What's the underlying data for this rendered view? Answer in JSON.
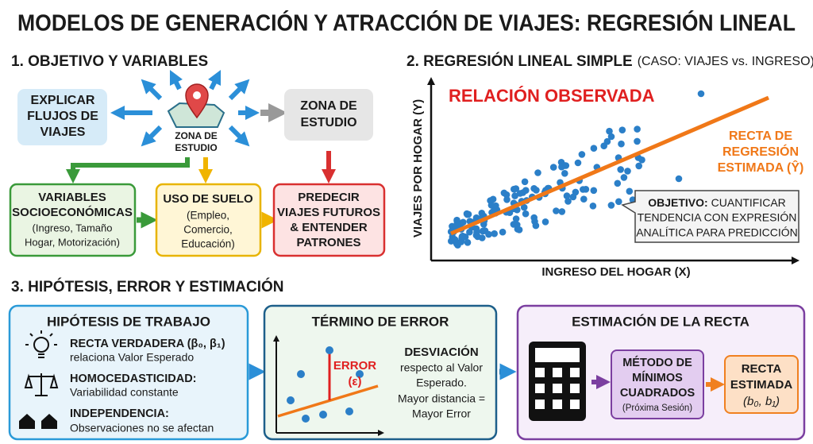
{
  "title": "MODELOS DE GENERACIÓN Y ATRACCIÓN DE VIAJES: REGRESIÓN LINEAL",
  "section1": {
    "heading": "1. OBJETIVO Y VARIABLES",
    "explain": [
      "EXPLICAR",
      "FLUJOS DE",
      "VIAJES"
    ],
    "center": [
      "ZONA DE",
      "ESTUDIO"
    ],
    "zone": [
      "ZONA DE",
      "ESTUDIO"
    ],
    "socio": {
      "title": [
        "VARIABLES",
        "SOCIOECONÓMICAS"
      ],
      "detail": [
        "(Ingreso, Tamaño",
        "Hogar, Motorización)"
      ]
    },
    "land": {
      "title": "USO DE SUELO",
      "detail": [
        "(Empleo,",
        "Comercio,",
        "Educación)"
      ]
    },
    "predict": [
      "PREDECIR",
      "VIAJES FUTUROS",
      "& ENTENDER",
      "PATRONES"
    ]
  },
  "section2": {
    "heading": "2. REGRESIÓN LINEAL SIMPLE",
    "case": "(CASO: VIAJES vs. INGRESO)",
    "y_label": "VIAJES POR HOGAR (Y)",
    "x_label": "INGRESO DEL HOGAR (X)",
    "observed": "RELACIÓN OBSERVADA",
    "fit_label": [
      "RECTA DE",
      "REGRESIÓN",
      "ESTIMADA (Ŷ)"
    ],
    "objective": {
      "lead": "OBJETIVO:",
      "lines": [
        "CUANTIFICAR",
        "TENDENCIA CON EXPRESIÓN",
        "ANALÍTICA PARA PREDICCIÓN"
      ]
    }
  },
  "section3": {
    "heading": "3. HIPÓTESIS, ERROR Y ESTIMACIÓN",
    "hypotheses": {
      "title": "HIPÓTESIS DE TRABAJO",
      "items": [
        {
          "term": "RECTA VERDADERA (β₀, β₁)",
          "text": "relaciona Valor Esperado"
        },
        {
          "term": "HOMOCEDASTICIDAD:",
          "text": "Variabilidad constante"
        },
        {
          "term": "INDEPENDENCIA:",
          "text": "Observaciones no se afectan"
        }
      ]
    },
    "error": {
      "title": "TÉRMINO DE ERROR",
      "label": [
        "ERROR",
        "(ε)"
      ],
      "term": "DESVIACIÓN",
      "text": [
        "respecto al Valor",
        "Esperado.",
        "Mayor distancia =",
        "Mayor Error"
      ]
    },
    "estimation": {
      "title": "ESTIMACIÓN DE LA RECTA",
      "method": [
        "MÉTODO DE",
        "MÍNIMOS",
        "CUADRADOS"
      ],
      "note": "(Próxima Sesión)",
      "result": [
        "RECTA",
        "ESTIMADA",
        "(b₀, b₁)"
      ]
    }
  }
}
